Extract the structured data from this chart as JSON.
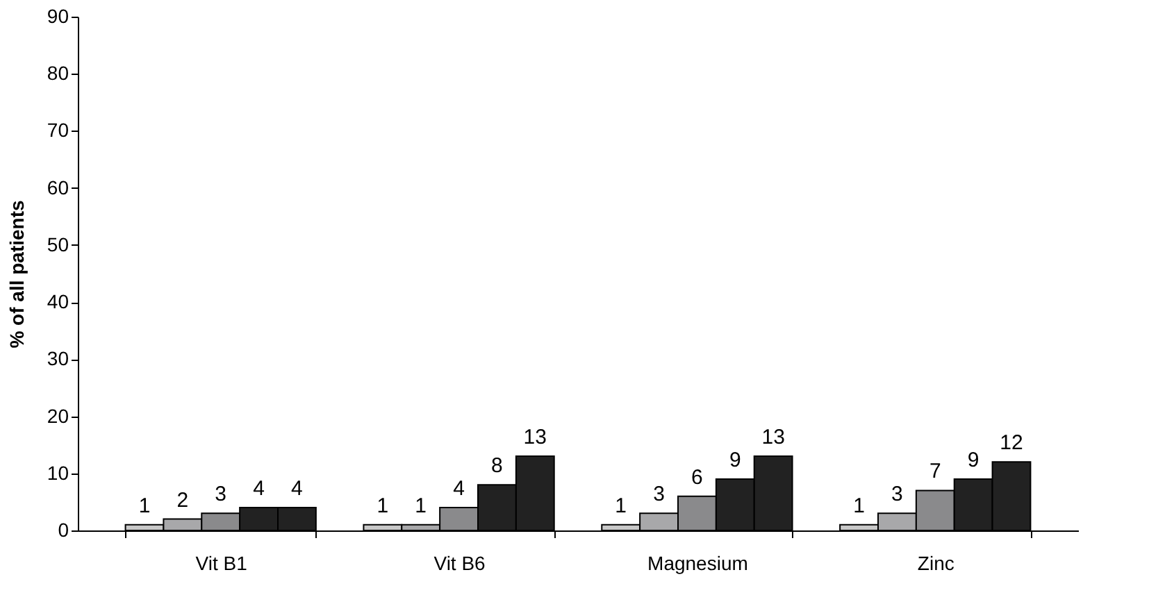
{
  "chart_data": {
    "type": "bar",
    "ylabel": "% of all patients",
    "categories": [
      "Vit B1",
      "Vit B6",
      "Magnesium",
      "Zinc"
    ],
    "series": [
      {
        "color": "#c8c8c8",
        "values": [
          1,
          1,
          1,
          1
        ]
      },
      {
        "color": "#a8a8aa",
        "values": [
          2,
          1,
          3,
          3
        ]
      },
      {
        "color": "#8a8a8c",
        "values": [
          3,
          4,
          6,
          7
        ]
      },
      {
        "color": "#222222",
        "values": [
          4,
          8,
          9,
          9
        ]
      },
      {
        "color": "#222222",
        "values": [
          4,
          13,
          13,
          12
        ]
      }
    ],
    "ylim": [
      0,
      90
    ],
    "yticks": [
      0,
      10,
      20,
      30,
      40,
      50,
      60,
      70,
      80,
      90
    ],
    "data_labels": true,
    "grid": false,
    "legend": false
  }
}
